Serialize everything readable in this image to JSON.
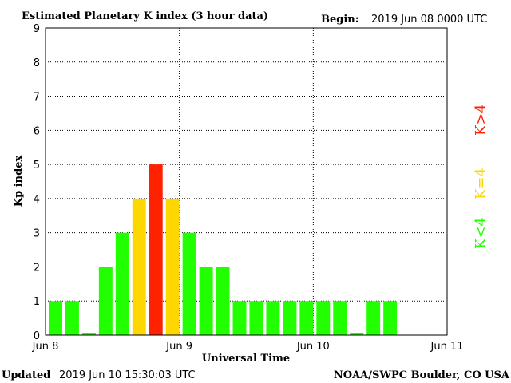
{
  "chart_data": {
    "type": "bar",
    "title": "Estimated Planetary K index (3 hour data)",
    "begin_label": "Begin:",
    "begin_value": "2019 Jun 08 0000 UTC",
    "xlabel": "Universal Time",
    "ylabel": "Kp index",
    "ylim": [
      0,
      9
    ],
    "yticks": [
      "0",
      "1",
      "2",
      "3",
      "4",
      "5",
      "6",
      "7",
      "8",
      "9"
    ],
    "xticks": [
      "Jun 8",
      "Jun 9",
      "Jun 10",
      "Jun 11"
    ],
    "interval_hours": 3,
    "values": [
      1,
      1,
      0,
      2,
      3,
      4,
      5,
      4,
      3,
      2,
      2,
      1,
      1,
      1,
      1,
      1,
      1,
      1,
      0,
      1,
      1
    ],
    "colors": {
      "below": "#22ff00",
      "equal": "#ffd700",
      "above": "#ff2200"
    },
    "legend": [
      {
        "label": "K>4",
        "color": "#ff2200"
      },
      {
        "label": "K=4",
        "color": "#ffd700"
      },
      {
        "label": "K<4",
        "color": "#22ff00"
      }
    ],
    "grid": true,
    "updated_label": "Updated",
    "updated_value": "2019 Jun 10 15:30:03 UTC",
    "credit": "NOAA/SWPC Boulder, CO USA"
  }
}
